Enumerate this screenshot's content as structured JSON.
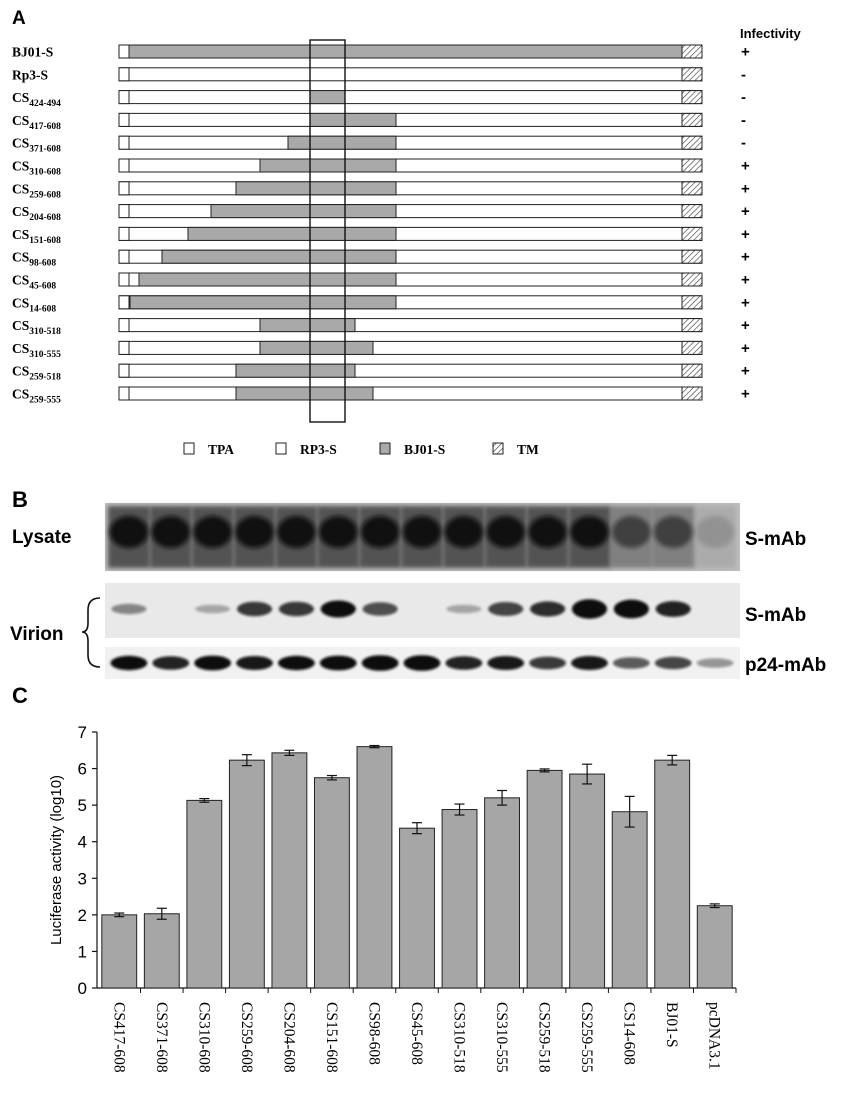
{
  "panel_a": {
    "letter": "A",
    "infectivity_header": "Infectivity",
    "rows": [
      {
        "base": "BJ01-S",
        "sub": "",
        "bj_start": 1,
        "bj_end": 1255,
        "infectivity": "+"
      },
      {
        "base": "Rp3-S",
        "sub": "",
        "bj_start": null,
        "bj_end": null,
        "infectivity": "-"
      },
      {
        "base": "CS",
        "sub": "424-494",
        "bj_start": 424,
        "bj_end": 494,
        "infectivity": "-"
      },
      {
        "base": "CS",
        "sub": "417-608",
        "bj_start": 417,
        "bj_end": 608,
        "infectivity": "-"
      },
      {
        "base": "CS",
        "sub": "371-608",
        "bj_start": 371,
        "bj_end": 608,
        "infectivity": "-"
      },
      {
        "base": "CS",
        "sub": "310-608",
        "bj_start": 310,
        "bj_end": 608,
        "infectivity": "+"
      },
      {
        "base": "CS",
        "sub": "259-608",
        "bj_start": 259,
        "bj_end": 608,
        "infectivity": "+"
      },
      {
        "base": "CS",
        "sub": "204-608",
        "bj_start": 204,
        "bj_end": 608,
        "infectivity": "+"
      },
      {
        "base": "CS",
        "sub": "151-608",
        "bj_start": 151,
        "bj_end": 608,
        "infectivity": "+"
      },
      {
        "base": "CS",
        "sub": "98-608",
        "bj_start": 98,
        "bj_end": 608,
        "infectivity": "+"
      },
      {
        "base": "CS",
        "sub": "45-608",
        "bj_start": 45,
        "bj_end": 608,
        "infectivity": "+"
      },
      {
        "base": "CS",
        "sub": "14-608",
        "bj_start": 14,
        "bj_end": 608,
        "infectivity": "+"
      },
      {
        "base": "CS",
        "sub": "310-518",
        "bj_start": 310,
        "bj_end": 518,
        "infectivity": "+"
      },
      {
        "base": "CS",
        "sub": "310-555",
        "bj_start": 310,
        "bj_end": 555,
        "infectivity": "+"
      },
      {
        "base": "CS",
        "sub": "259-518",
        "bj_start": 259,
        "bj_end": 518,
        "infectivity": "+"
      },
      {
        "base": "CS",
        "sub": "259-555",
        "bj_start": 259,
        "bj_end": 555,
        "infectivity": "+"
      }
    ],
    "legend": [
      {
        "label": "TPA",
        "fill": "#ffffff",
        "pattern": false
      },
      {
        "label": "RP3-S",
        "fill": "#ffffff",
        "pattern": false
      },
      {
        "label": "BJ01-S",
        "fill": "#a9a9a9",
        "pattern": false
      },
      {
        "label": "TM",
        "fill": "#ffffff",
        "pattern": true
      }
    ],
    "colors": {
      "bj01": "#a9a9a9",
      "outline": "#222222"
    }
  },
  "panel_b": {
    "letter": "B",
    "lysate_label": "Lysate",
    "virion_label": "Virion",
    "lysate_antibody": "S-mAb",
    "virion_antibody": "S-mAb",
    "p24_antibody": "p24-mAb",
    "lanes": 15,
    "virion_band_strength": [
      0.2,
      0.0,
      0.05,
      0.55,
      0.55,
      0.75,
      0.45,
      0.0,
      0.05,
      0.5,
      0.6,
      0.95,
      0.9,
      0.65,
      0.0
    ],
    "p24_band_strength": [
      0.8,
      0.7,
      0.85,
      0.75,
      0.8,
      0.85,
      0.95,
      0.95,
      0.7,
      0.75,
      0.6,
      0.75,
      0.45,
      0.55,
      0.2
    ]
  },
  "panel_c": {
    "letter": "C",
    "chart_data": {
      "type": "bar",
      "ylabel": "Luciferase activity (log10)",
      "xlabel": "",
      "ylim": [
        0,
        7
      ],
      "yticks": [
        0,
        1,
        2,
        3,
        4,
        5,
        6,
        7
      ],
      "categories": [
        "CS417-608",
        "CS371-608",
        "CS310-608",
        "CS259-608",
        "CS204-608",
        "CS151-608",
        "CS98-608",
        "CS45-608",
        "CS310-518",
        "CS310-555",
        "CS259-518",
        "CS259-555",
        "CS14-608",
        "BJ01-S",
        "pcDNA3.1"
      ],
      "values": [
        2.0,
        2.03,
        5.13,
        6.23,
        6.43,
        5.75,
        6.6,
        4.37,
        4.88,
        5.2,
        5.95,
        5.85,
        4.82,
        6.23,
        2.25
      ],
      "errors": [
        0.05,
        0.15,
        0.05,
        0.15,
        0.07,
        0.06,
        0.03,
        0.15,
        0.15,
        0.2,
        0.04,
        0.27,
        0.42,
        0.13,
        0.05
      ],
      "bar_color": "#a6a6a6",
      "grid": false
    }
  }
}
